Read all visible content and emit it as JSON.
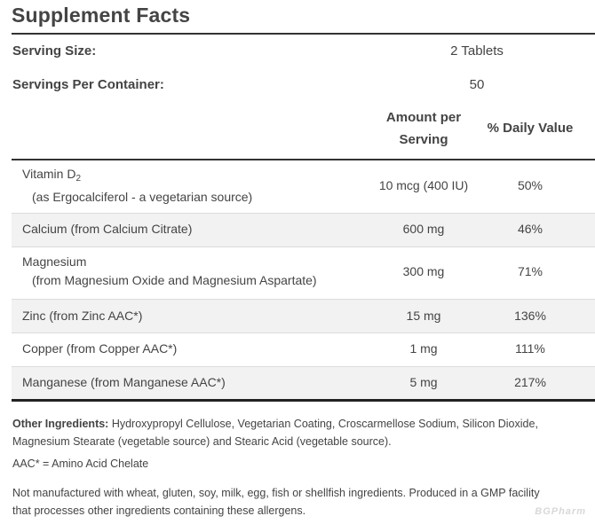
{
  "title": "Supplement Facts",
  "serving_size": {
    "label": "Serving Size:",
    "value": "2 Tablets"
  },
  "servings_per_container": {
    "label": "Servings Per Container:",
    "value": "50"
  },
  "columns": {
    "amount_line1": "Amount per",
    "amount_line2": "Serving",
    "daily_value": "% Daily Value"
  },
  "nutrients": [
    {
      "name": "Vitamin D",
      "subscript": "2",
      "detail": "(as Ergocalciferol - a vegetarian source)",
      "amount": "10 mcg (400 IU)",
      "dv": "50%"
    },
    {
      "name": "Calcium (from Calcium Citrate)",
      "amount": "600 mg",
      "dv": "46%"
    },
    {
      "name": "Magnesium",
      "detail": "(from Magnesium Oxide and Magnesium Aspartate)",
      "amount": "300 mg",
      "dv": "71%"
    },
    {
      "name": "Zinc (from Zinc AAC*)",
      "amount": "15 mg",
      "dv": "136%"
    },
    {
      "name": "Copper (from Copper AAC*)",
      "amount": "1 mg",
      "dv": "111%"
    },
    {
      "name": "Manganese (from Manganese AAC*)",
      "amount": "5 mg",
      "dv": "217%"
    }
  ],
  "other_ingredients": {
    "label": "Other Ingredients:",
    "line1": "Hydroxypropyl Cellulose, Vegetarian Coating, Croscarmellose Sodium, Silicon Dioxide,",
    "line2": "Magnesium Stearate (vegetable source) and Stearic Acid (vegetable source)."
  },
  "aac_note": "AAC* = Amino Acid Chelate",
  "allergen_line1": "Not manufactured with wheat, gluten, soy, milk, egg, fish or shellfish ingredients. Produced in a GMP facility",
  "allergen_line2": "that processes other ingredients containing these allergens.",
  "watermark": "BGPharm"
}
